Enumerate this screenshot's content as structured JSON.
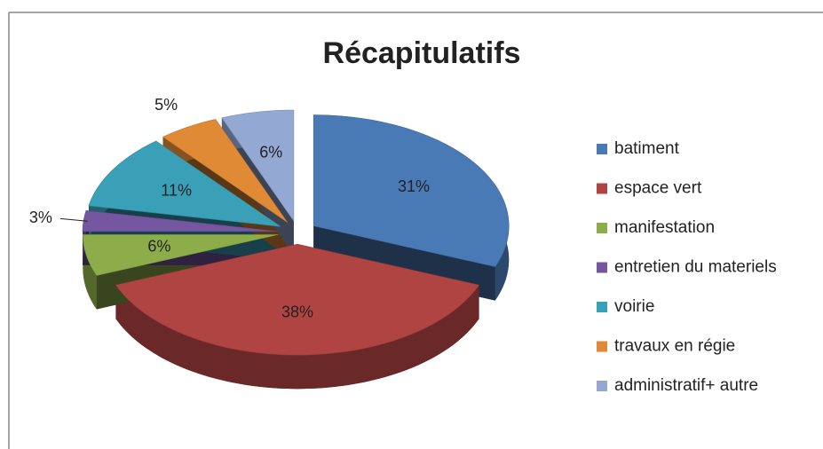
{
  "chart_data": {
    "type": "pie",
    "title": "Récapitulatifs",
    "categories": [
      "batiment",
      "espace vert",
      "manifestation",
      "entretien du materiels",
      "voirie",
      "travaux en régie",
      "administratif+ autre"
    ],
    "values": [
      31,
      38,
      6,
      3,
      11,
      5,
      6
    ],
    "value_labels": [
      "31%",
      "38%",
      "6%",
      "3%",
      "11%",
      "5%",
      "6%"
    ],
    "colors": [
      "#4a7ab5",
      "#b04442",
      "#8cad4a",
      "#7556a0",
      "#3aa0b8",
      "#e08a35",
      "#94a8d4"
    ],
    "legend": "right"
  }
}
